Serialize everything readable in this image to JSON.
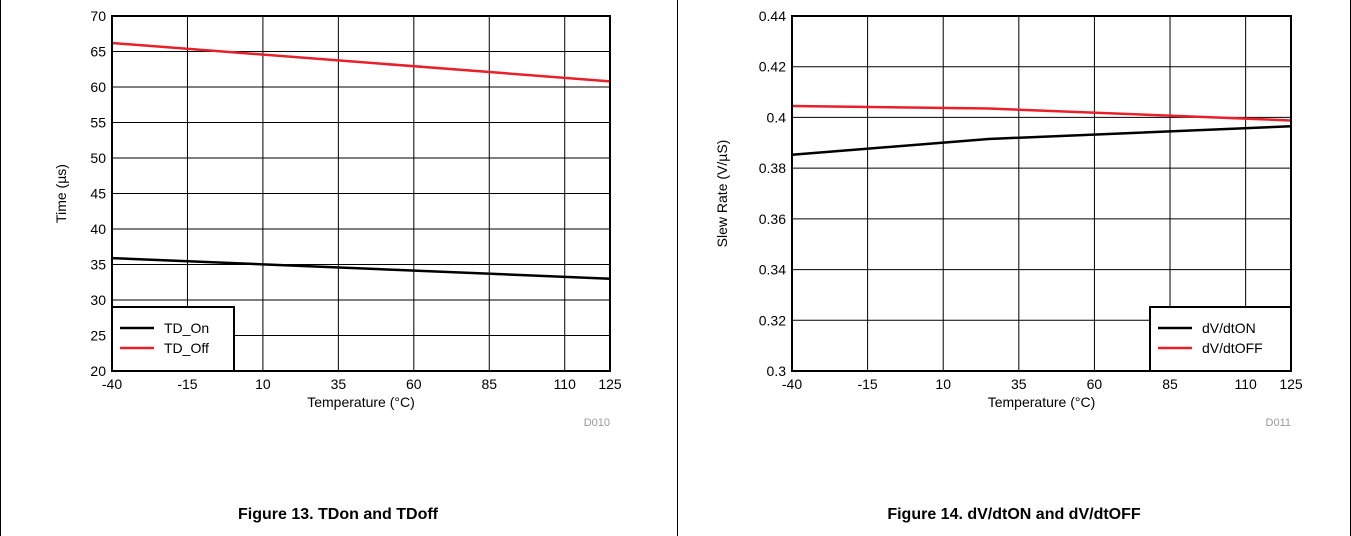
{
  "chart_data": [
    {
      "type": "line",
      "title": "",
      "xlabel": "Temperature (°C)",
      "ylabel": "Time (µs)",
      "x_ticks": [
        -40,
        -15,
        10,
        35,
        60,
        85,
        110,
        125
      ],
      "y_ticks": [
        20,
        25,
        30,
        35,
        40,
        45,
        50,
        55,
        60,
        65,
        70
      ],
      "xlim": [
        -40,
        125
      ],
      "ylim": [
        20,
        70
      ],
      "grid": true,
      "legend_position": "bottom-left",
      "series": [
        {
          "name": "TD_On",
          "color": "#000000",
          "x": [
            -40,
            125
          ],
          "y": [
            35.9,
            33.0
          ]
        },
        {
          "name": "TD_Off",
          "color": "#e8202a",
          "x": [
            -40,
            125
          ],
          "y": [
            66.2,
            60.8
          ]
        }
      ],
      "annotation": "D010",
      "caption": "Figure 13. TDon and TDoff"
    },
    {
      "type": "line",
      "title": "",
      "xlabel": "Temperature (°C)",
      "ylabel": "Slew Rate (V/µS)",
      "x_ticks": [
        -40,
        -15,
        10,
        35,
        60,
        85,
        110,
        125
      ],
      "y_ticks": [
        0.3,
        0.32,
        0.34,
        0.36,
        0.38,
        0.4,
        0.42,
        0.44
      ],
      "y_tick_labels": [
        "0.3",
        "0.32",
        "0.34",
        "0.36",
        "0.38",
        "0.4",
        "0.42",
        "0.44"
      ],
      "xlim": [
        -40,
        125
      ],
      "ylim": [
        0.3,
        0.44
      ],
      "grid": true,
      "legend_position": "bottom-right",
      "series": [
        {
          "name": "dV/dtON",
          "color": "#000000",
          "x": [
            -40,
            25,
            125
          ],
          "y": [
            0.3853,
            0.3915,
            0.3965
          ]
        },
        {
          "name": "dV/dtOFF",
          "color": "#e8202a",
          "x": [
            -40,
            25,
            125
          ],
          "y": [
            0.4045,
            0.4035,
            0.3988
          ]
        }
      ],
      "annotation": "D011",
      "caption": "Figure 14. dV/dtON and dV/dtOFF"
    }
  ]
}
